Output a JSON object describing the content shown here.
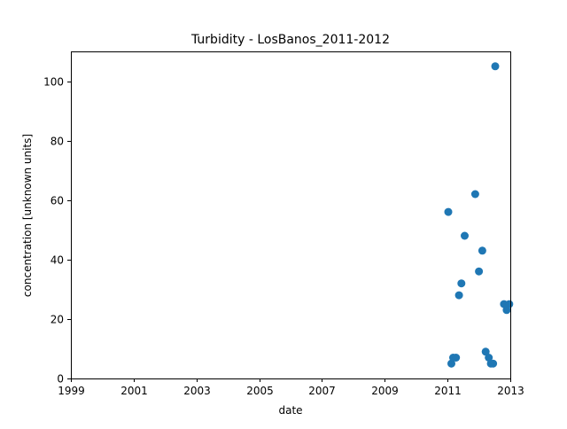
{
  "chart_data": {
    "type": "scatter",
    "title": "Turbidity - LosBanos_2011-2012",
    "xlabel": "date",
    "ylabel": "concentration [unknown units]",
    "x_axis_type": "date",
    "xlim": [
      "1999-01-01",
      "2013-01-01"
    ],
    "ylim": [
      0,
      110
    ],
    "xticks": [
      {
        "value": "1999-01-01",
        "label": "1999"
      },
      {
        "value": "2001-01-01",
        "label": "2001"
      },
      {
        "value": "2003-01-01",
        "label": "2003"
      },
      {
        "value": "2005-01-01",
        "label": "2005"
      },
      {
        "value": "2007-01-01",
        "label": "2007"
      },
      {
        "value": "2009-01-01",
        "label": "2009"
      },
      {
        "value": "2011-01-01",
        "label": "2011"
      },
      {
        "value": "2013-01-01",
        "label": "2013"
      }
    ],
    "yticks": [
      0,
      20,
      40,
      60,
      80,
      100
    ],
    "grid": false,
    "legend": "none",
    "marker_color": "#1f77b4",
    "series": [
      {
        "points": [
          {
            "x": "2011-01-10",
            "y": 56
          },
          {
            "x": "2011-02-15",
            "y": 5
          },
          {
            "x": "2011-03-08",
            "y": 7
          },
          {
            "x": "2011-04-10",
            "y": 7
          },
          {
            "x": "2011-05-15",
            "y": 28
          },
          {
            "x": "2011-06-12",
            "y": 32
          },
          {
            "x": "2011-07-20",
            "y": 48
          },
          {
            "x": "2011-11-20",
            "y": 62
          },
          {
            "x": "2012-01-02",
            "y": 36
          },
          {
            "x": "2012-02-10",
            "y": 43
          },
          {
            "x": "2012-03-20",
            "y": 9
          },
          {
            "x": "2012-04-25",
            "y": 7
          },
          {
            "x": "2012-05-20",
            "y": 5
          },
          {
            "x": "2012-06-15",
            "y": 5
          },
          {
            "x": "2012-07-10",
            "y": 105
          },
          {
            "x": "2012-10-20",
            "y": 25
          },
          {
            "x": "2012-11-20",
            "y": 23
          },
          {
            "x": "2012-12-20",
            "y": 25
          }
        ]
      }
    ]
  }
}
